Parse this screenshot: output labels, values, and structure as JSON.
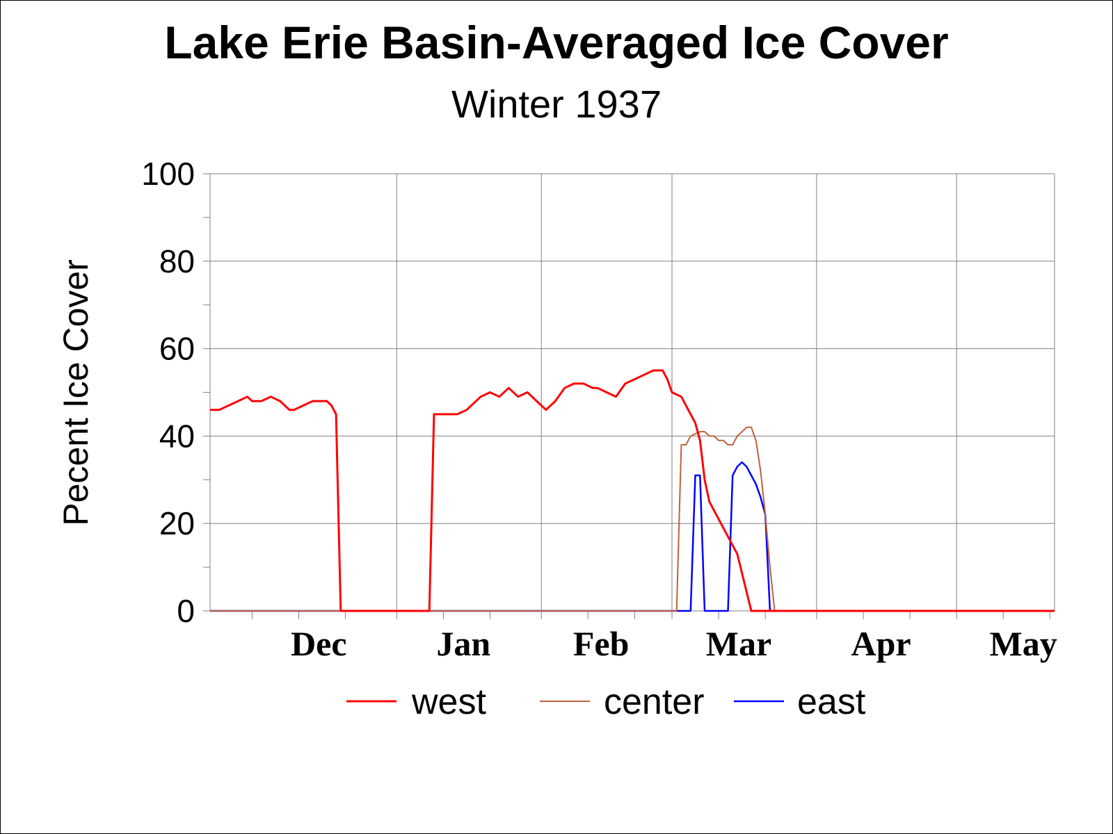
{
  "colors": {
    "west": "#ff0000",
    "center": "#c0603a",
    "east": "#0000ff",
    "grid": "#808080",
    "background": "#ffffff"
  },
  "chart_data": {
    "type": "line",
    "title": "Lake Erie Basin-Averaged Ice Cover",
    "subtitle": "Winter 1937",
    "xlabel": "",
    "ylabel": "Pecent Ice Cover",
    "ylim": [
      0,
      100
    ],
    "yticks": [
      0,
      20,
      40,
      60,
      80,
      100
    ],
    "xlim": [
      "Nov 22",
      "May 22"
    ],
    "month_labels": [
      "Dec",
      "Jan",
      "Feb",
      "Mar",
      "Apr",
      "May"
    ],
    "grid": true,
    "legend_position": "bottom",
    "series": [
      {
        "name": "west",
        "x": [
          "Nov 22",
          "Nov 24",
          "Nov 26",
          "Nov 28",
          "Nov 30",
          "Dec 1",
          "Dec 3",
          "Dec 5",
          "Dec 7",
          "Dec 9",
          "Dec 10",
          "Dec 12",
          "Dec 14",
          "Dec 16",
          "Dec 17",
          "Dec 18",
          "Dec 19",
          "Dec 20",
          "Jan 8",
          "Jan 9",
          "Jan 10",
          "Jan 14",
          "Jan 16",
          "Jan 19",
          "Jan 21",
          "Jan 23",
          "Jan 25",
          "Jan 27",
          "Jan 29",
          "Jan 31",
          "Feb 2",
          "Feb 4",
          "Feb 6",
          "Feb 8",
          "Feb 10",
          "Feb 12",
          "Feb 13",
          "Feb 15",
          "Feb 17",
          "Feb 19",
          "Feb 21",
          "Feb 23",
          "Feb 25",
          "Feb 27",
          "Feb 28",
          "Mar 1",
          "Mar 3",
          "Mar 4",
          "Mar 6",
          "Mar 7",
          "Mar 8",
          "Mar 9",
          "Mar 12",
          "Mar 15",
          "Mar 18",
          "Mar 22",
          "Mar 24",
          "Mar 26",
          "Mar 28",
          "Mar 31",
          "Apr 1",
          "Apr 2",
          "May 22"
        ],
        "values": [
          46,
          46,
          47,
          48,
          49,
          48,
          48,
          49,
          48,
          46,
          46,
          47,
          48,
          48,
          48,
          47,
          45,
          0,
          0,
          45,
          45,
          45,
          46,
          49,
          50,
          49,
          51,
          49,
          50,
          48,
          46,
          48,
          51,
          52,
          52,
          51,
          51,
          50,
          49,
          52,
          53,
          54,
          55,
          55,
          53,
          50,
          49,
          47,
          43,
          39,
          30,
          25,
          19,
          13,
          0,
          0,
          0,
          0,
          0,
          0,
          0,
          0,
          0
        ]
      },
      {
        "name": "center",
        "x": [
          "Nov 22",
          "Mar 2",
          "Mar 3",
          "Mar 4",
          "Mar 5",
          "Mar 7",
          "Mar 8",
          "Mar 9",
          "Mar 10",
          "Mar 11",
          "Mar 12",
          "Mar 13",
          "Mar 14",
          "Mar 15",
          "Mar 16",
          "Mar 17",
          "Mar 18",
          "Mar 19",
          "Mar 20",
          "Mar 21",
          "Mar 22",
          "Mar 23",
          "Mar 24",
          "May 22"
        ],
        "values": [
          0,
          0,
          38,
          38,
          40,
          41,
          41,
          40,
          40,
          39,
          39,
          38,
          38,
          40,
          41,
          42,
          42,
          39,
          32,
          22,
          10,
          0,
          0,
          0
        ]
      },
      {
        "name": "east",
        "x": [
          "Nov 22",
          "Mar 5",
          "Mar 6",
          "Mar 7",
          "Mar 8",
          "Mar 9",
          "Mar 13",
          "Mar 14",
          "Mar 15",
          "Mar 16",
          "Mar 17",
          "Mar 18",
          "Mar 19",
          "Mar 20",
          "Mar 21",
          "Mar 22",
          "Mar 23",
          "May 22"
        ],
        "values": [
          0,
          0,
          31,
          31,
          0,
          0,
          0,
          31,
          33,
          34,
          33,
          31,
          29,
          26,
          22,
          0,
          0,
          0
        ]
      }
    ]
  }
}
